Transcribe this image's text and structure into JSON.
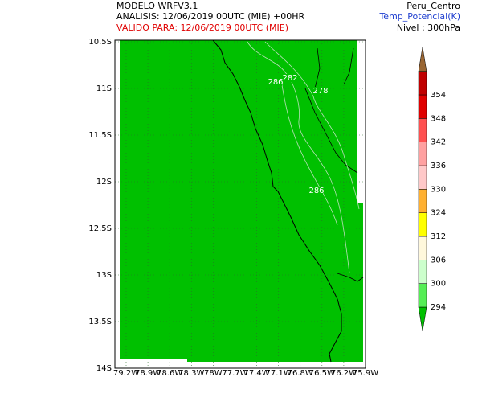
{
  "header": {
    "model": "MODELO WRFV3.1",
    "analysis": "ANALISIS: 12/06/2019 00UTC (MIE) +00HR",
    "valid": "VALIDO PARA: 12/06/2019 00UTC (MIE)",
    "region": "Peru_Centro",
    "variable": "Temp_Potencial(K)",
    "level": "Nivel : 300hPa"
  },
  "map": {
    "lat_labels": [
      "10.5S",
      "11S",
      "11.5S",
      "12S",
      "12.5S",
      "13S",
      "13.5S",
      "14S"
    ],
    "lon_labels": [
      "79.2W",
      "78.9W",
      "78.6W",
      "78.3W",
      "78W",
      "77.7W",
      "77.4W",
      "77.1W",
      "76.8W",
      "76.5W",
      "76.2W",
      "75.9W"
    ],
    "contour_labels": [
      "286",
      "282",
      "278",
      "286"
    ]
  },
  "colorbar": {
    "levels": [
      294,
      300,
      306,
      312,
      324,
      330,
      336,
      342,
      348,
      354
    ],
    "colors": [
      "#00c000",
      "#55ee55",
      "#ccffcc",
      "#fff8dc",
      "#ffff00",
      "#ffb030",
      "#ffc8c8",
      "#ffa0a0",
      "#ff5050",
      "#e00000",
      "#c00000"
    ],
    "top_color": "#996633"
  }
}
